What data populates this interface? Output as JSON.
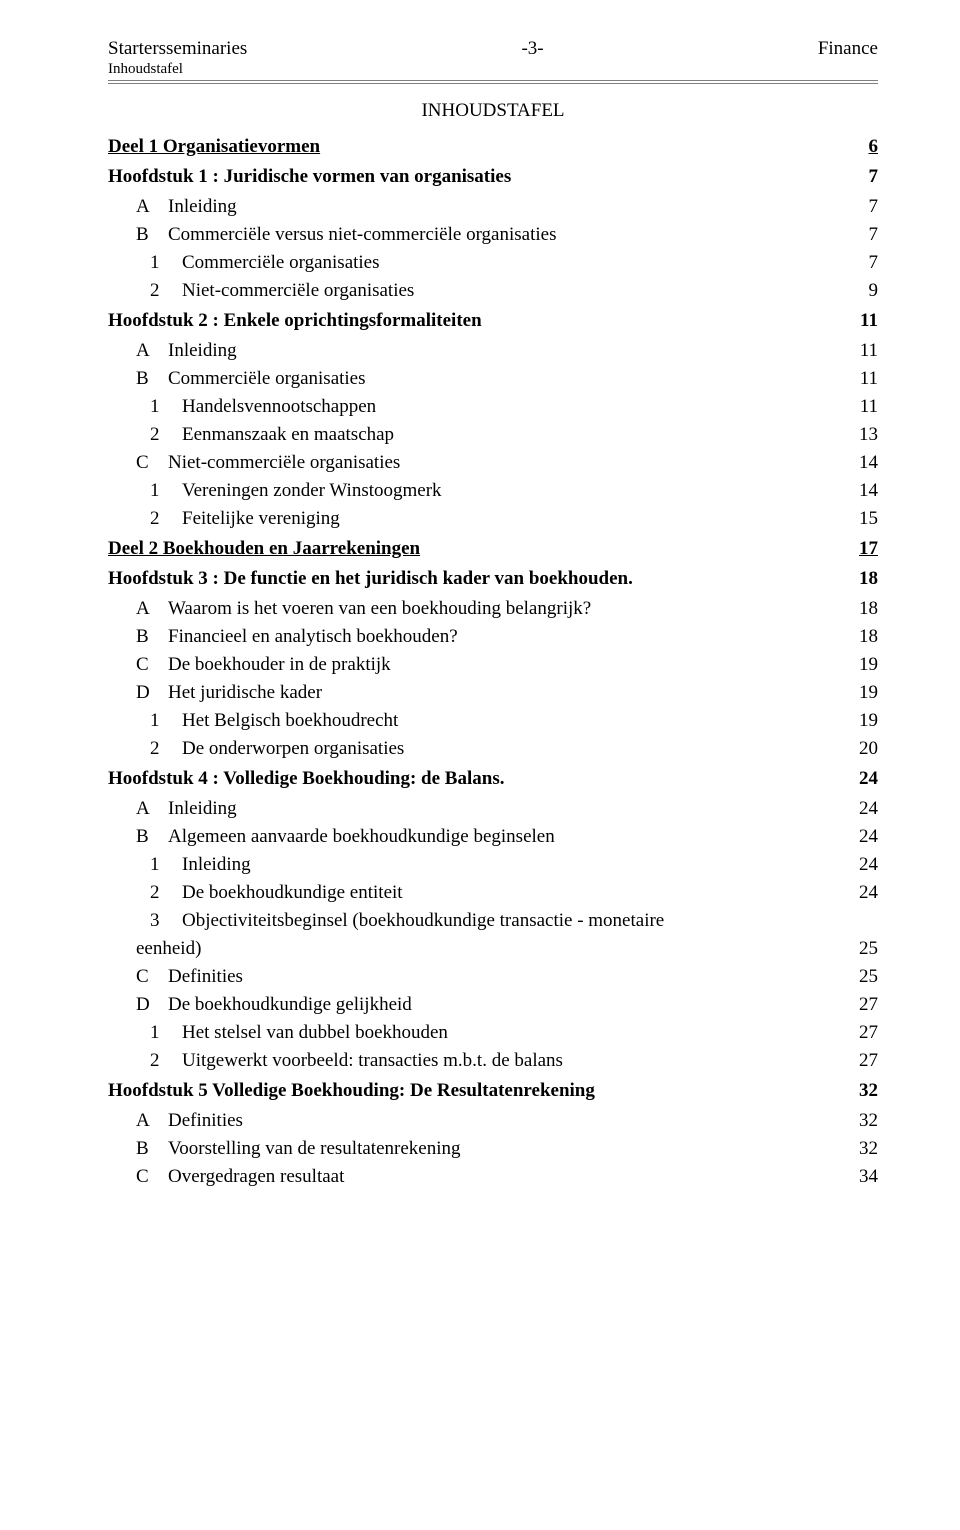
{
  "header": {
    "left": "Startersseminaries",
    "center": "-3-",
    "right": "Finance",
    "sub": "Inhoudstafel"
  },
  "title": "INHOUDSTAFEL",
  "toc": [
    {
      "type": "deel",
      "label": "Deel 1 Organisatievormen",
      "page": "6"
    },
    {
      "type": "hoofdstuk",
      "label": "Hoofdstuk 1 : Juridische vormen van organisaties",
      "page": "7"
    },
    {
      "type": "a",
      "marker": "A",
      "label": "Inleiding",
      "page": "7"
    },
    {
      "type": "a",
      "marker": "B",
      "label": "Commerciële versus niet-commerciële organisaties",
      "page": "7"
    },
    {
      "type": "n",
      "marker": "1",
      "label": "Commerciële organisaties",
      "page": "7"
    },
    {
      "type": "n",
      "marker": "2",
      "label": "Niet-commerciële organisaties",
      "page": "9"
    },
    {
      "type": "hoofdstuk",
      "label": "Hoofdstuk 2 : Enkele oprichtingsformaliteiten",
      "page": "11"
    },
    {
      "type": "a",
      "marker": "A",
      "label": "Inleiding",
      "page": "11"
    },
    {
      "type": "a",
      "marker": "B",
      "label": "Commerciële organisaties",
      "page": "11"
    },
    {
      "type": "n",
      "marker": "1",
      "label": "Handelsvennootschappen",
      "page": "11"
    },
    {
      "type": "n",
      "marker": "2",
      "label": "Eenmanszaak en maatschap",
      "page": "13"
    },
    {
      "type": "a",
      "marker": "C",
      "label": "Niet-commerciële organisaties",
      "page": "14"
    },
    {
      "type": "n",
      "marker": "1",
      "label": "Vereningen zonder Winstoogmerk",
      "page": "14"
    },
    {
      "type": "n",
      "marker": "2",
      "label": "Feitelijke vereniging",
      "page": "15"
    },
    {
      "type": "deel",
      "label": "Deel 2 Boekhouden en Jaarrekeningen",
      "page": "17"
    },
    {
      "type": "hoofdstuk",
      "label": "Hoofdstuk 3 : De functie en het juridisch kader van boekhouden.",
      "page": "18"
    },
    {
      "type": "a",
      "marker": "A",
      "label": "Waarom is het voeren van een boekhouding belangrijk?",
      "page": "18"
    },
    {
      "type": "a",
      "marker": "B",
      "label": "Financieel en analytisch boekhouden?",
      "page": "18"
    },
    {
      "type": "a",
      "marker": "C",
      "label": "De boekhouder in de praktijk",
      "page": "19"
    },
    {
      "type": "a",
      "marker": "D",
      "label": "Het juridische kader",
      "page": "19"
    },
    {
      "type": "n",
      "marker": "1",
      "label": "Het Belgisch boekhoudrecht",
      "page": "19"
    },
    {
      "type": "n",
      "marker": "2",
      "label": "De onderworpen organisaties",
      "page": "20"
    },
    {
      "type": "hoofdstuk",
      "label": "Hoofdstuk 4 : Volledige Boekhouding: de Balans.",
      "page": "24"
    },
    {
      "type": "a",
      "marker": "A",
      "label": "Inleiding",
      "page": "24"
    },
    {
      "type": "a",
      "marker": "B",
      "label": "Algemeen aanvaarde boekhoudkundige beginselen",
      "page": "24"
    },
    {
      "type": "n",
      "marker": "1",
      "label": "Inleiding",
      "page": "24"
    },
    {
      "type": "n",
      "marker": "2",
      "label": "De boekhoudkundige entiteit",
      "page": "24"
    },
    {
      "type": "nwrap",
      "marker": "3",
      "label1": "Objectiviteitsbeginsel (boekhoudkundige transactie - monetaire",
      "label2": "eenheid)",
      "page": "25"
    },
    {
      "type": "a",
      "marker": "C",
      "label": "Definities",
      "page": "25"
    },
    {
      "type": "a",
      "marker": "D",
      "label": "De boekhoudkundige gelijkheid",
      "page": "27"
    },
    {
      "type": "n",
      "marker": "1",
      "label": "Het stelsel van dubbel boekhouden",
      "page": "27"
    },
    {
      "type": "n",
      "marker": "2",
      "label": "Uitgewerkt voorbeeld: transacties m.b.t. de balans",
      "page": "27"
    },
    {
      "type": "hoofdstuk",
      "label": "Hoofdstuk 5 Volledige Boekhouding: De Resultatenrekening",
      "page": "32"
    },
    {
      "type": "a",
      "marker": "A",
      "label": "Definities",
      "page": "32"
    },
    {
      "type": "a",
      "marker": "B",
      "label": "Voorstelling van de resultatenrekening",
      "page": "32"
    },
    {
      "type": "a",
      "marker": "C",
      "label": "Overgedragen resultaat",
      "page": "34"
    }
  ]
}
